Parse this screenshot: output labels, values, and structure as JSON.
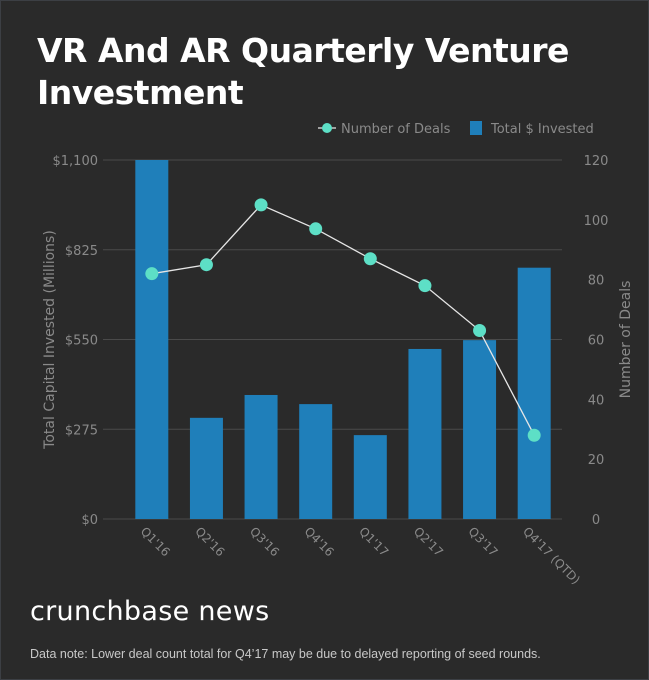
{
  "chart_data": {
    "type": "bar",
    "title": "VR And AR Quarterly Venture Investment",
    "categories": [
      "Q1'16",
      "Q2'16",
      "Q3'16",
      "Q4'16",
      "Q1'17",
      "Q2'17",
      "Q3'17",
      "Q4'17 (QTD)"
    ],
    "series": [
      {
        "name": "Total $ Invested",
        "type": "bar",
        "axis": "left",
        "color": "#1f7fba",
        "values": [
          1100,
          310,
          380,
          352,
          257,
          521,
          548,
          770
        ]
      },
      {
        "name": "Number of Deals",
        "type": "line",
        "axis": "right",
        "color": "#5ddfc6",
        "values": [
          82,
          85,
          105,
          97,
          87,
          78,
          63,
          28
        ]
      }
    ],
    "ylabel": "Total Capital Invested (Millions)",
    "y2label": "Number of Deals",
    "ylim": [
      0,
      1100
    ],
    "y2lim": [
      0,
      120
    ],
    "yticks": [
      "$0",
      "$275",
      "$550",
      "$825",
      "$1,100"
    ],
    "ytick_values": [
      0,
      275,
      550,
      825,
      1100
    ],
    "y2ticks": [
      "0",
      "20",
      "40",
      "60",
      "80",
      "100",
      "120"
    ],
    "y2tick_values": [
      0,
      20,
      40,
      60,
      80,
      100,
      120
    ],
    "legend": [
      "Number of Deals",
      "Total $ Invested"
    ],
    "legend_position": "top-right",
    "grid": true
  },
  "brand": "crunchbase news",
  "note": "Data note: Lower deal count total for Q4’17 may be due to delayed reporting of seed rounds."
}
